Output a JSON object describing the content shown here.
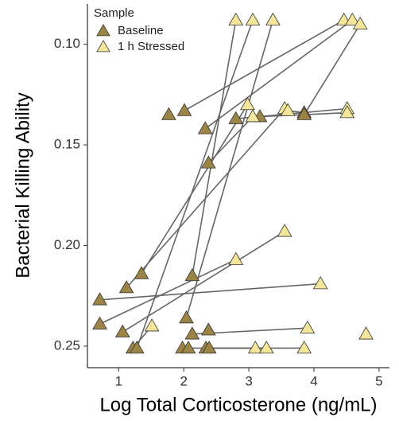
{
  "chart_data": {
    "type": "paired_scatter",
    "xlabel": "Log Total Corticosterone (ng/mL)",
    "ylabel": "Bacterial Killing Ability",
    "legend_title": "Sample",
    "legend_position": "top-left",
    "line_color": "#666666",
    "xlim": [
      0.52,
      5.16
    ],
    "xticks": [
      1,
      2,
      3,
      4,
      5
    ],
    "ylim": [
      0.08,
      0.2607
    ],
    "y_reversed": true,
    "yticks": [
      {
        "value": 0.1,
        "label": "0.10"
      },
      0.15,
      {
        "value": 0.2,
        "label": "0.20"
      },
      0.25
    ],
    "series": [
      {
        "name": "Baseline",
        "color": "#9c8447",
        "x": [
          0.71,
          0.71,
          1.12,
          1.06,
          1.35,
          1.22,
          1.28,
          1.77,
          2.01,
          2.13,
          2.04,
          2.13,
          1.98,
          2.07,
          2.33,
          2.38,
          2.38,
          2.34,
          2.39,
          2.8,
          3.17,
          3.85,
          3.85,
          null
        ],
        "values": [
          0.227,
          0.239,
          0.221,
          0.243,
          0.214,
          0.251,
          0.251,
          0.135,
          0.133,
          0.215,
          0.236,
          0.244,
          0.251,
          0.251,
          0.142,
          0.159,
          0.242,
          0.251,
          0.251,
          0.137,
          0.136,
          0.134,
          0.135,
          null
        ]
      },
      {
        "name": "1 h Stressed",
        "color": "#f3e59a",
        "x": [
          4.1,
          2.8,
          3.55,
          3.55,
          2.98,
          1.51,
          3.06,
          null,
          4.46,
          2.8,
          3.37,
          3.9,
          null,
          3.1,
          4.59,
          3.06,
          null,
          3.27,
          3.85,
          4.51,
          4.51,
          3.6,
          4.71,
          4.8
        ],
        "values": [
          0.219,
          0.207,
          0.132,
          0.193,
          0.13,
          0.24,
          0.088,
          null,
          0.088,
          0.088,
          0.088,
          0.241,
          null,
          0.251,
          0.088,
          0.136,
          null,
          0.251,
          0.251,
          0.132,
          0.134,
          0.133,
          0.09,
          0.244
        ]
      }
    ]
  }
}
